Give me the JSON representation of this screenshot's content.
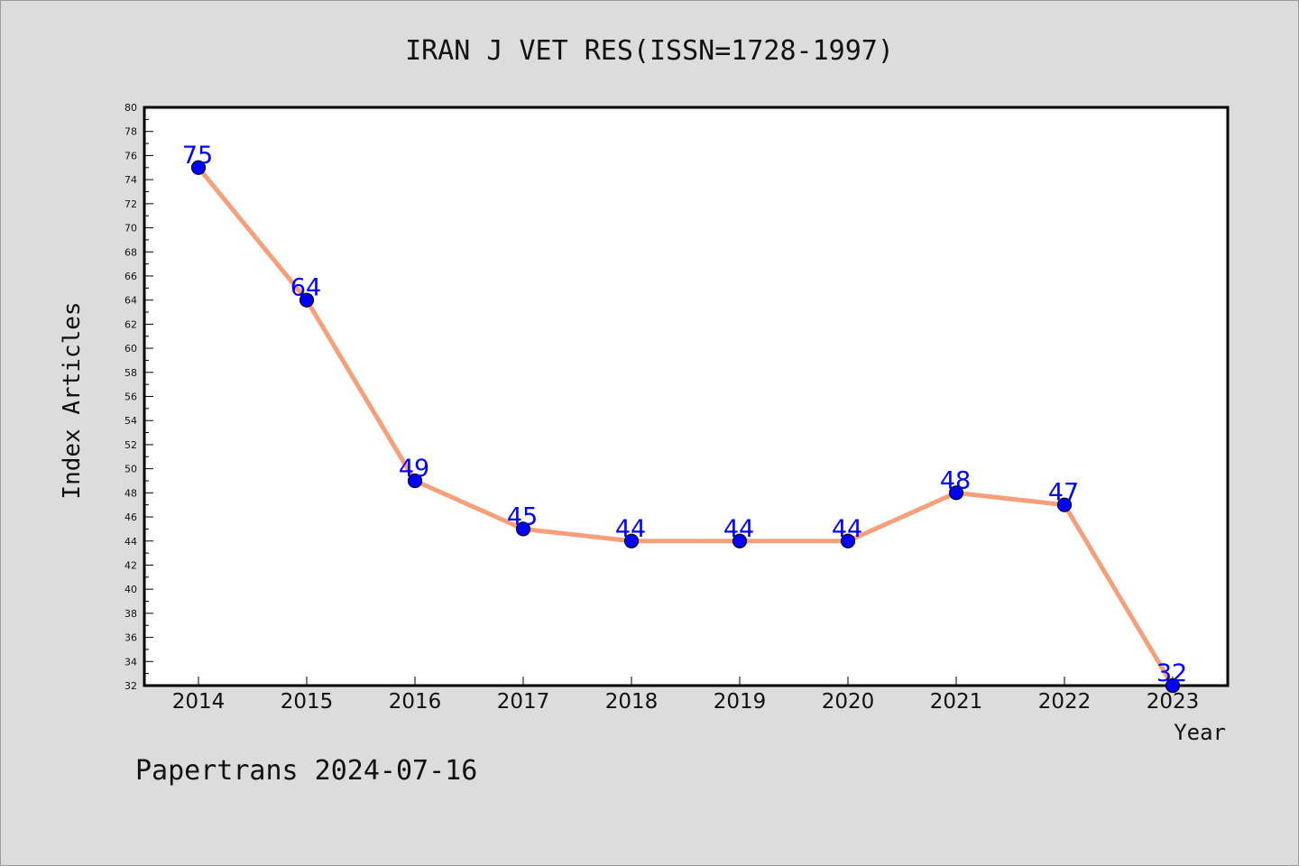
{
  "footer": "Papertrans 2024-07-16",
  "colors": {
    "background": "#dcdcdc",
    "plot_background": "#ffffff",
    "line": "#f5a07a",
    "marker": "#0000ff",
    "label": "#0000ff"
  },
  "chart_data": {
    "type": "line",
    "title": "IRAN J VET RES(ISSN=1728-1997)",
    "xlabel": "Year",
    "ylabel": "Index Articles",
    "categories": [
      "2014",
      "2015",
      "2016",
      "2017",
      "2018",
      "2019",
      "2020",
      "2021",
      "2022",
      "2023"
    ],
    "series": [
      {
        "values": [
          75,
          64,
          49,
          45,
          44,
          44,
          44,
          48,
          47,
          32
        ]
      }
    ],
    "ylim": [
      32,
      80
    ],
    "ytick_step": 2,
    "data_labels": true,
    "grid": false,
    "legend": "none"
  }
}
